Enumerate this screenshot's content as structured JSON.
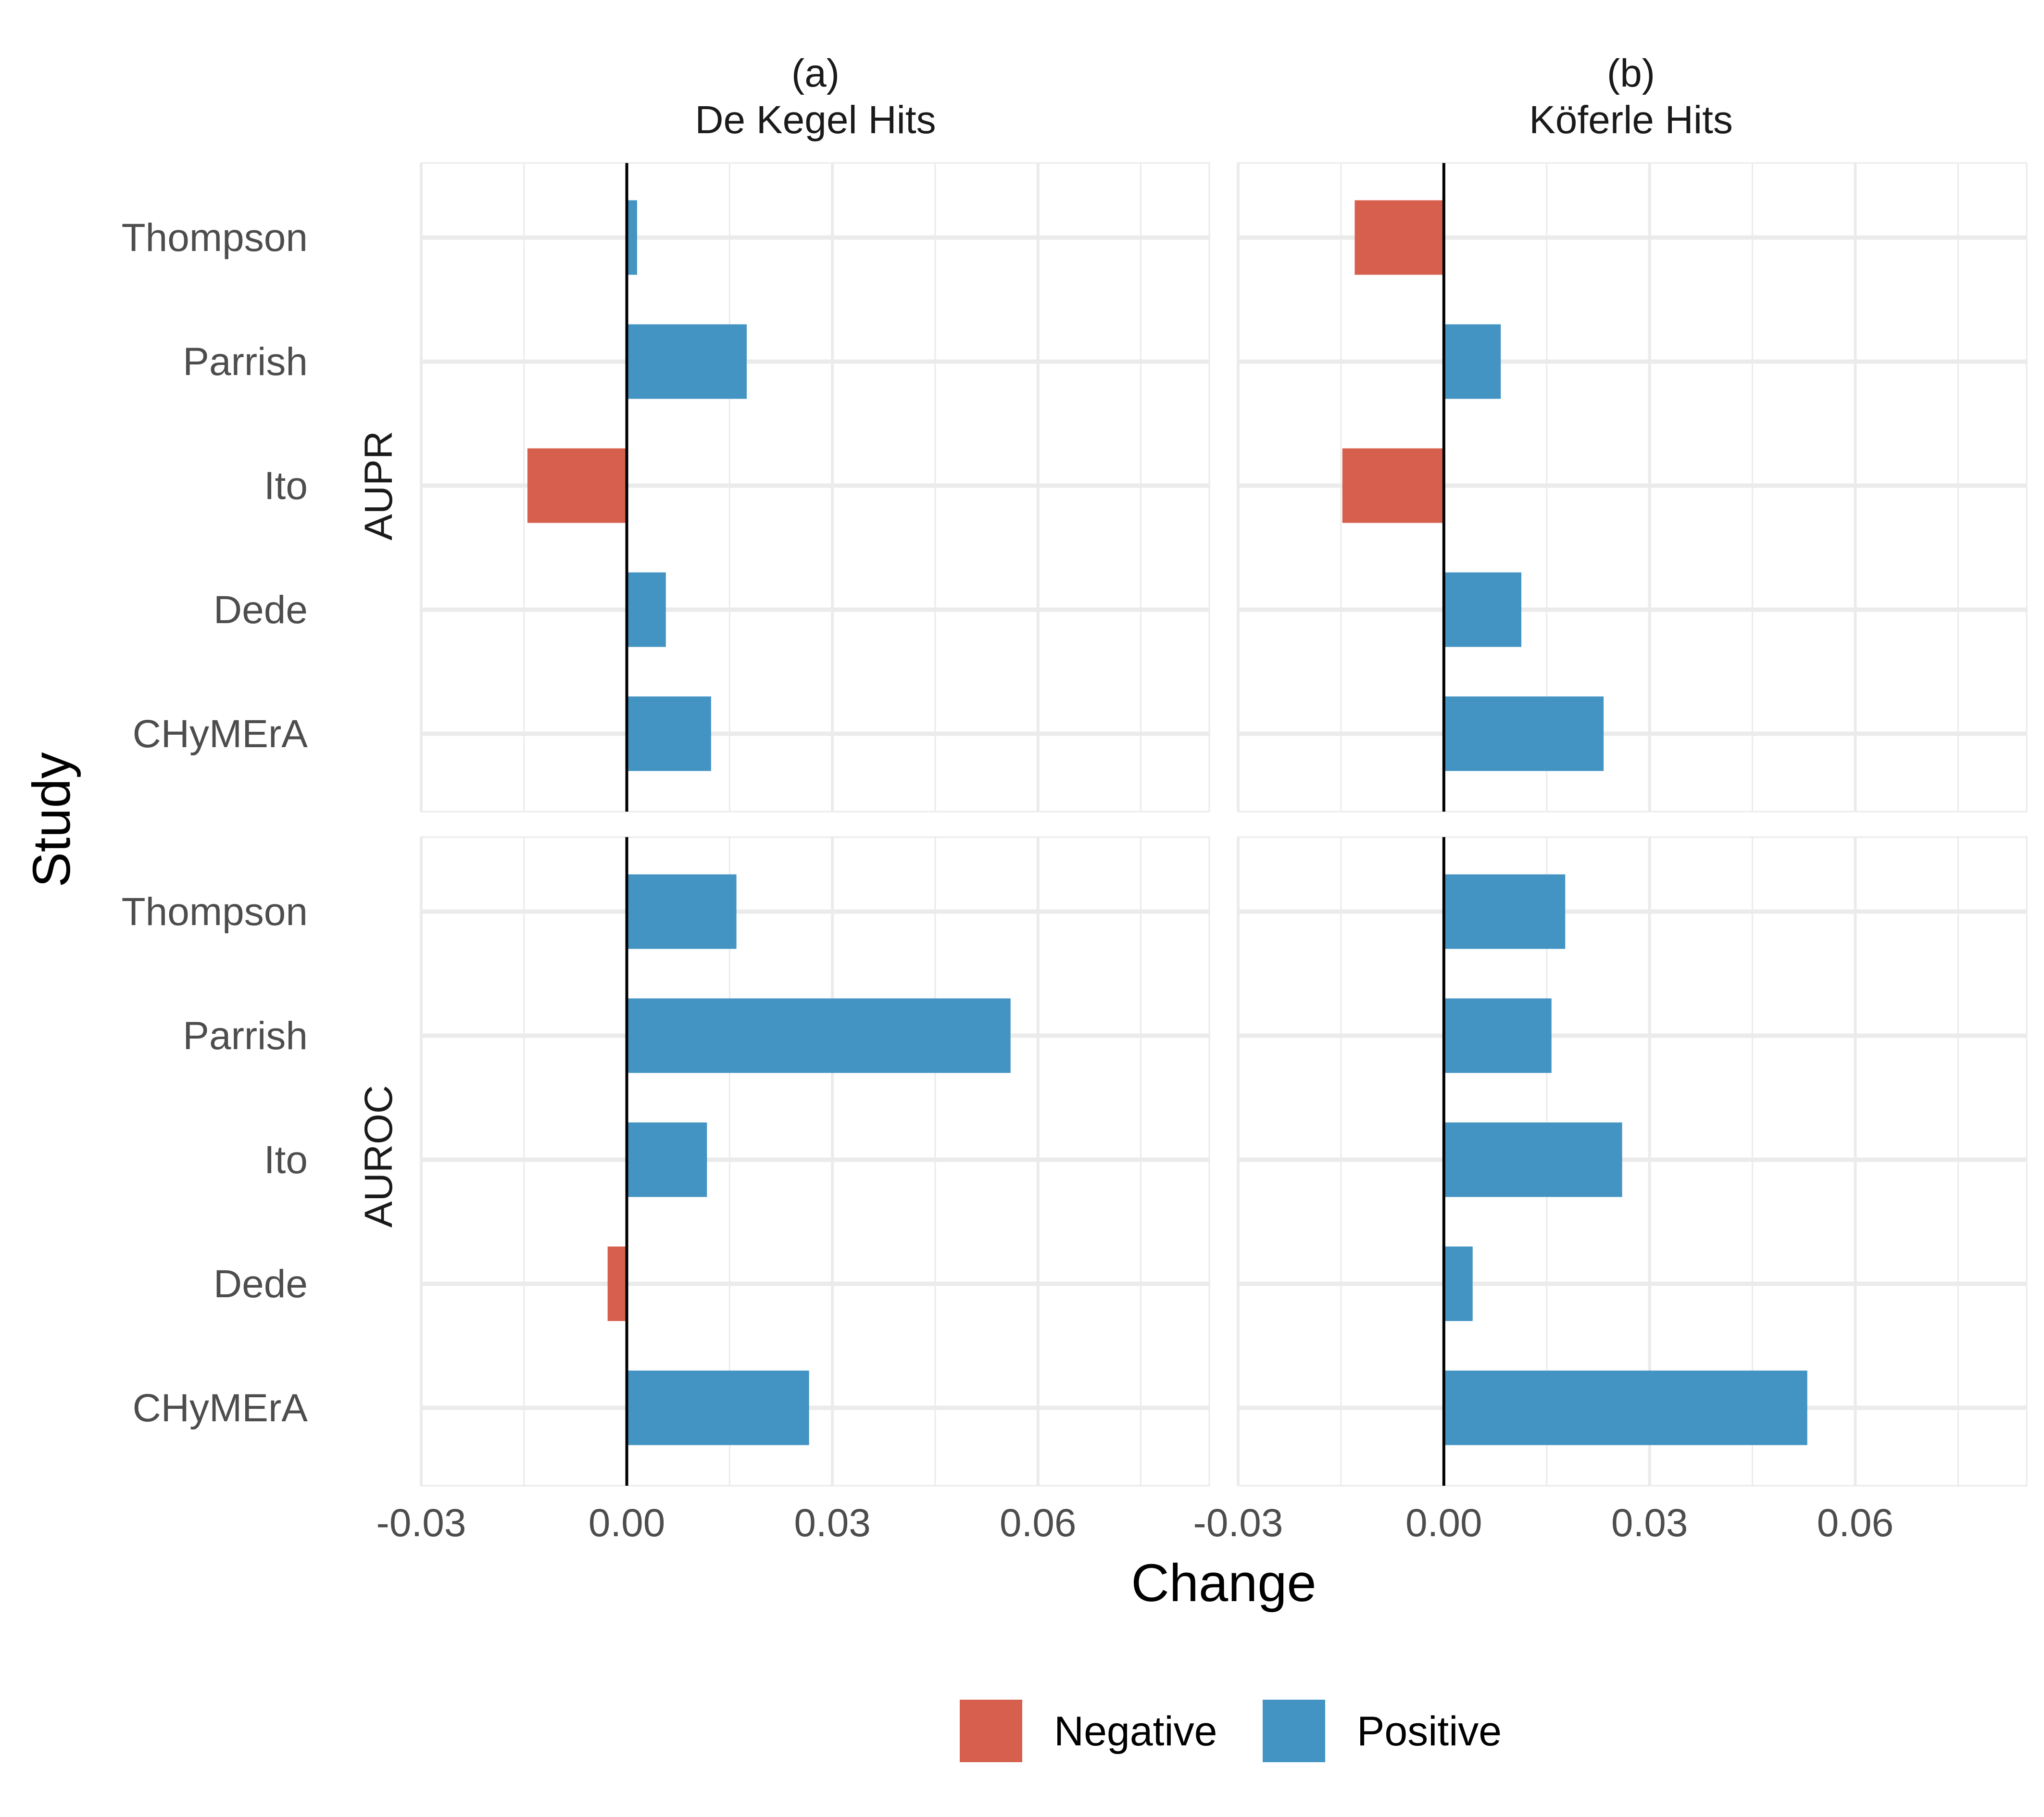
{
  "chart_data": {
    "type": "bar",
    "orientation": "horizontal",
    "xlabel": "Change",
    "ylabel": "Study",
    "xlim": [
      -0.03,
      0.085
    ],
    "x_ticks": [
      -0.03,
      0.0,
      0.03,
      0.06
    ],
    "x_tick_labels": [
      "-0.03",
      "0.00",
      "0.03",
      "0.06"
    ],
    "categories": [
      "Thompson",
      "Parrish",
      "Ito",
      "Dede",
      "CHyMErA"
    ],
    "columns": [
      {
        "letter": "(a)",
        "title": "De Kegel Hits"
      },
      {
        "letter": "(b)",
        "title": "Köferle Hits"
      }
    ],
    "rows": [
      "AUPR",
      "AUROC"
    ],
    "grid": true,
    "legend": {
      "position": "bottom",
      "entries": [
        {
          "label": "Negative",
          "color": "#D6604D"
        },
        {
          "label": "Positive",
          "color": "#4393C3"
        }
      ]
    },
    "panels": [
      {
        "column": "De Kegel Hits",
        "row": "AUPR",
        "values": [
          0.0015,
          0.0175,
          -0.0145,
          0.0057,
          0.0123
        ]
      },
      {
        "column": "Köferle Hits",
        "row": "AUPR",
        "values": [
          -0.013,
          0.0083,
          -0.0148,
          0.0113,
          0.0233
        ]
      },
      {
        "column": "De Kegel Hits",
        "row": "AUROC",
        "values": [
          0.016,
          0.056,
          0.0117,
          -0.0028,
          0.0266
        ]
      },
      {
        "column": "Köferle Hits",
        "row": "AUROC",
        "values": [
          0.0177,
          0.0157,
          0.026,
          0.0042,
          0.053
        ]
      }
    ]
  }
}
